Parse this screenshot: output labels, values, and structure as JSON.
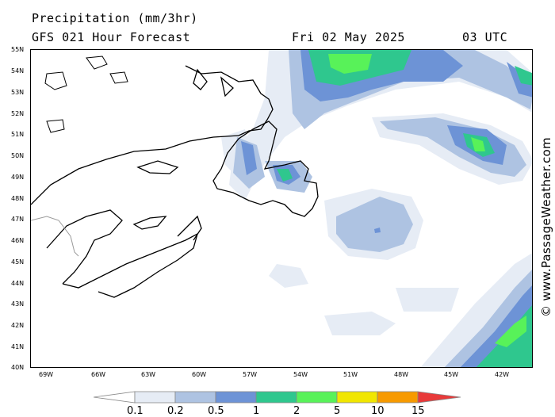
{
  "header": {
    "title": "Precipitation (mm/3hr)",
    "subtitle": "GFS 021 Hour Forecast",
    "valid_date": "Fri 02 May 2025",
    "valid_time": "03 UTC"
  },
  "credit": "© www.PassageWeather.com",
  "axes": {
    "lat_labels": [
      "55N",
      "54N",
      "53N",
      "52N",
      "51N",
      "50N",
      "49N",
      "48N",
      "47N",
      "46N",
      "45N",
      "44N",
      "43N",
      "42N",
      "41N",
      "40N"
    ],
    "lon_labels": [
      "69W",
      "66W",
      "63W",
      "60W",
      "57W",
      "54W",
      "51W",
      "48W",
      "45W",
      "42W"
    ]
  },
  "legend": {
    "values": [
      "0.1",
      "0.2",
      "0.5",
      "1",
      "2",
      "5",
      "10",
      "15"
    ],
    "colors": [
      "#e6ecf5",
      "#aec3e2",
      "#6d93d6",
      "#2fc78e",
      "#58f259",
      "#f1e600",
      "#f79a00",
      "#e83a3a"
    ]
  },
  "colors": {
    "level_0_1": "#e6ecf5",
    "level_0_2": "#aec3e2",
    "level_0_5": "#6d93d6",
    "level_1": "#2fc78e",
    "level_2": "#58f259",
    "coastline": "#000000",
    "border": "#9a9a9a"
  }
}
